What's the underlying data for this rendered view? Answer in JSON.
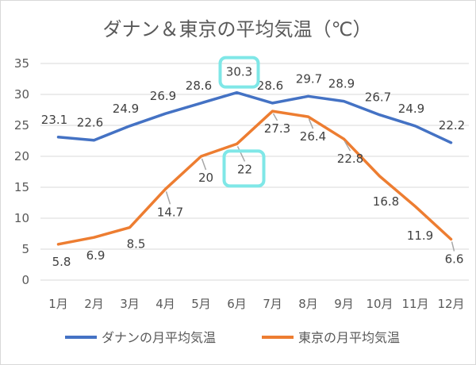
{
  "chart_data": {
    "type": "line",
    "title": "ダナン＆東京の平均気温（℃）",
    "categories": [
      "1月",
      "2月",
      "3月",
      "4月",
      "5月",
      "6月",
      "7月",
      "8月",
      "9月",
      "10月",
      "11月",
      "12月"
    ],
    "ylim": [
      0,
      35
    ],
    "yticks": [
      0,
      5,
      10,
      15,
      20,
      25,
      30,
      35
    ],
    "grid": true,
    "legend_position": "bottom",
    "series": [
      {
        "name": "ダナンの月平均気温",
        "color": "#4472c4",
        "values": [
          23.1,
          22.6,
          24.9,
          26.9,
          28.6,
          30.3,
          28.6,
          29.7,
          28.9,
          26.7,
          24.9,
          22.2
        ],
        "labels": [
          "23.1",
          "22.6",
          "24.9",
          "26.9",
          "28.6",
          "30.3",
          "28.6",
          "29.7",
          "28.9",
          "26.7",
          "24.9",
          "22.2"
        ]
      },
      {
        "name": "東京の月平均気温",
        "color": "#ed7d31",
        "values": [
          5.8,
          6.9,
          8.5,
          14.7,
          20,
          22,
          27.3,
          26.4,
          22.8,
          16.8,
          11.9,
          6.6
        ],
        "labels": [
          "5.8",
          "6.9",
          "8.5",
          "14.7",
          "20",
          "22",
          "27.3",
          "26.4",
          "22.8",
          "16.8",
          "11.9",
          "6.6"
        ]
      }
    ],
    "highlight_color": "#7fe7e7"
  }
}
